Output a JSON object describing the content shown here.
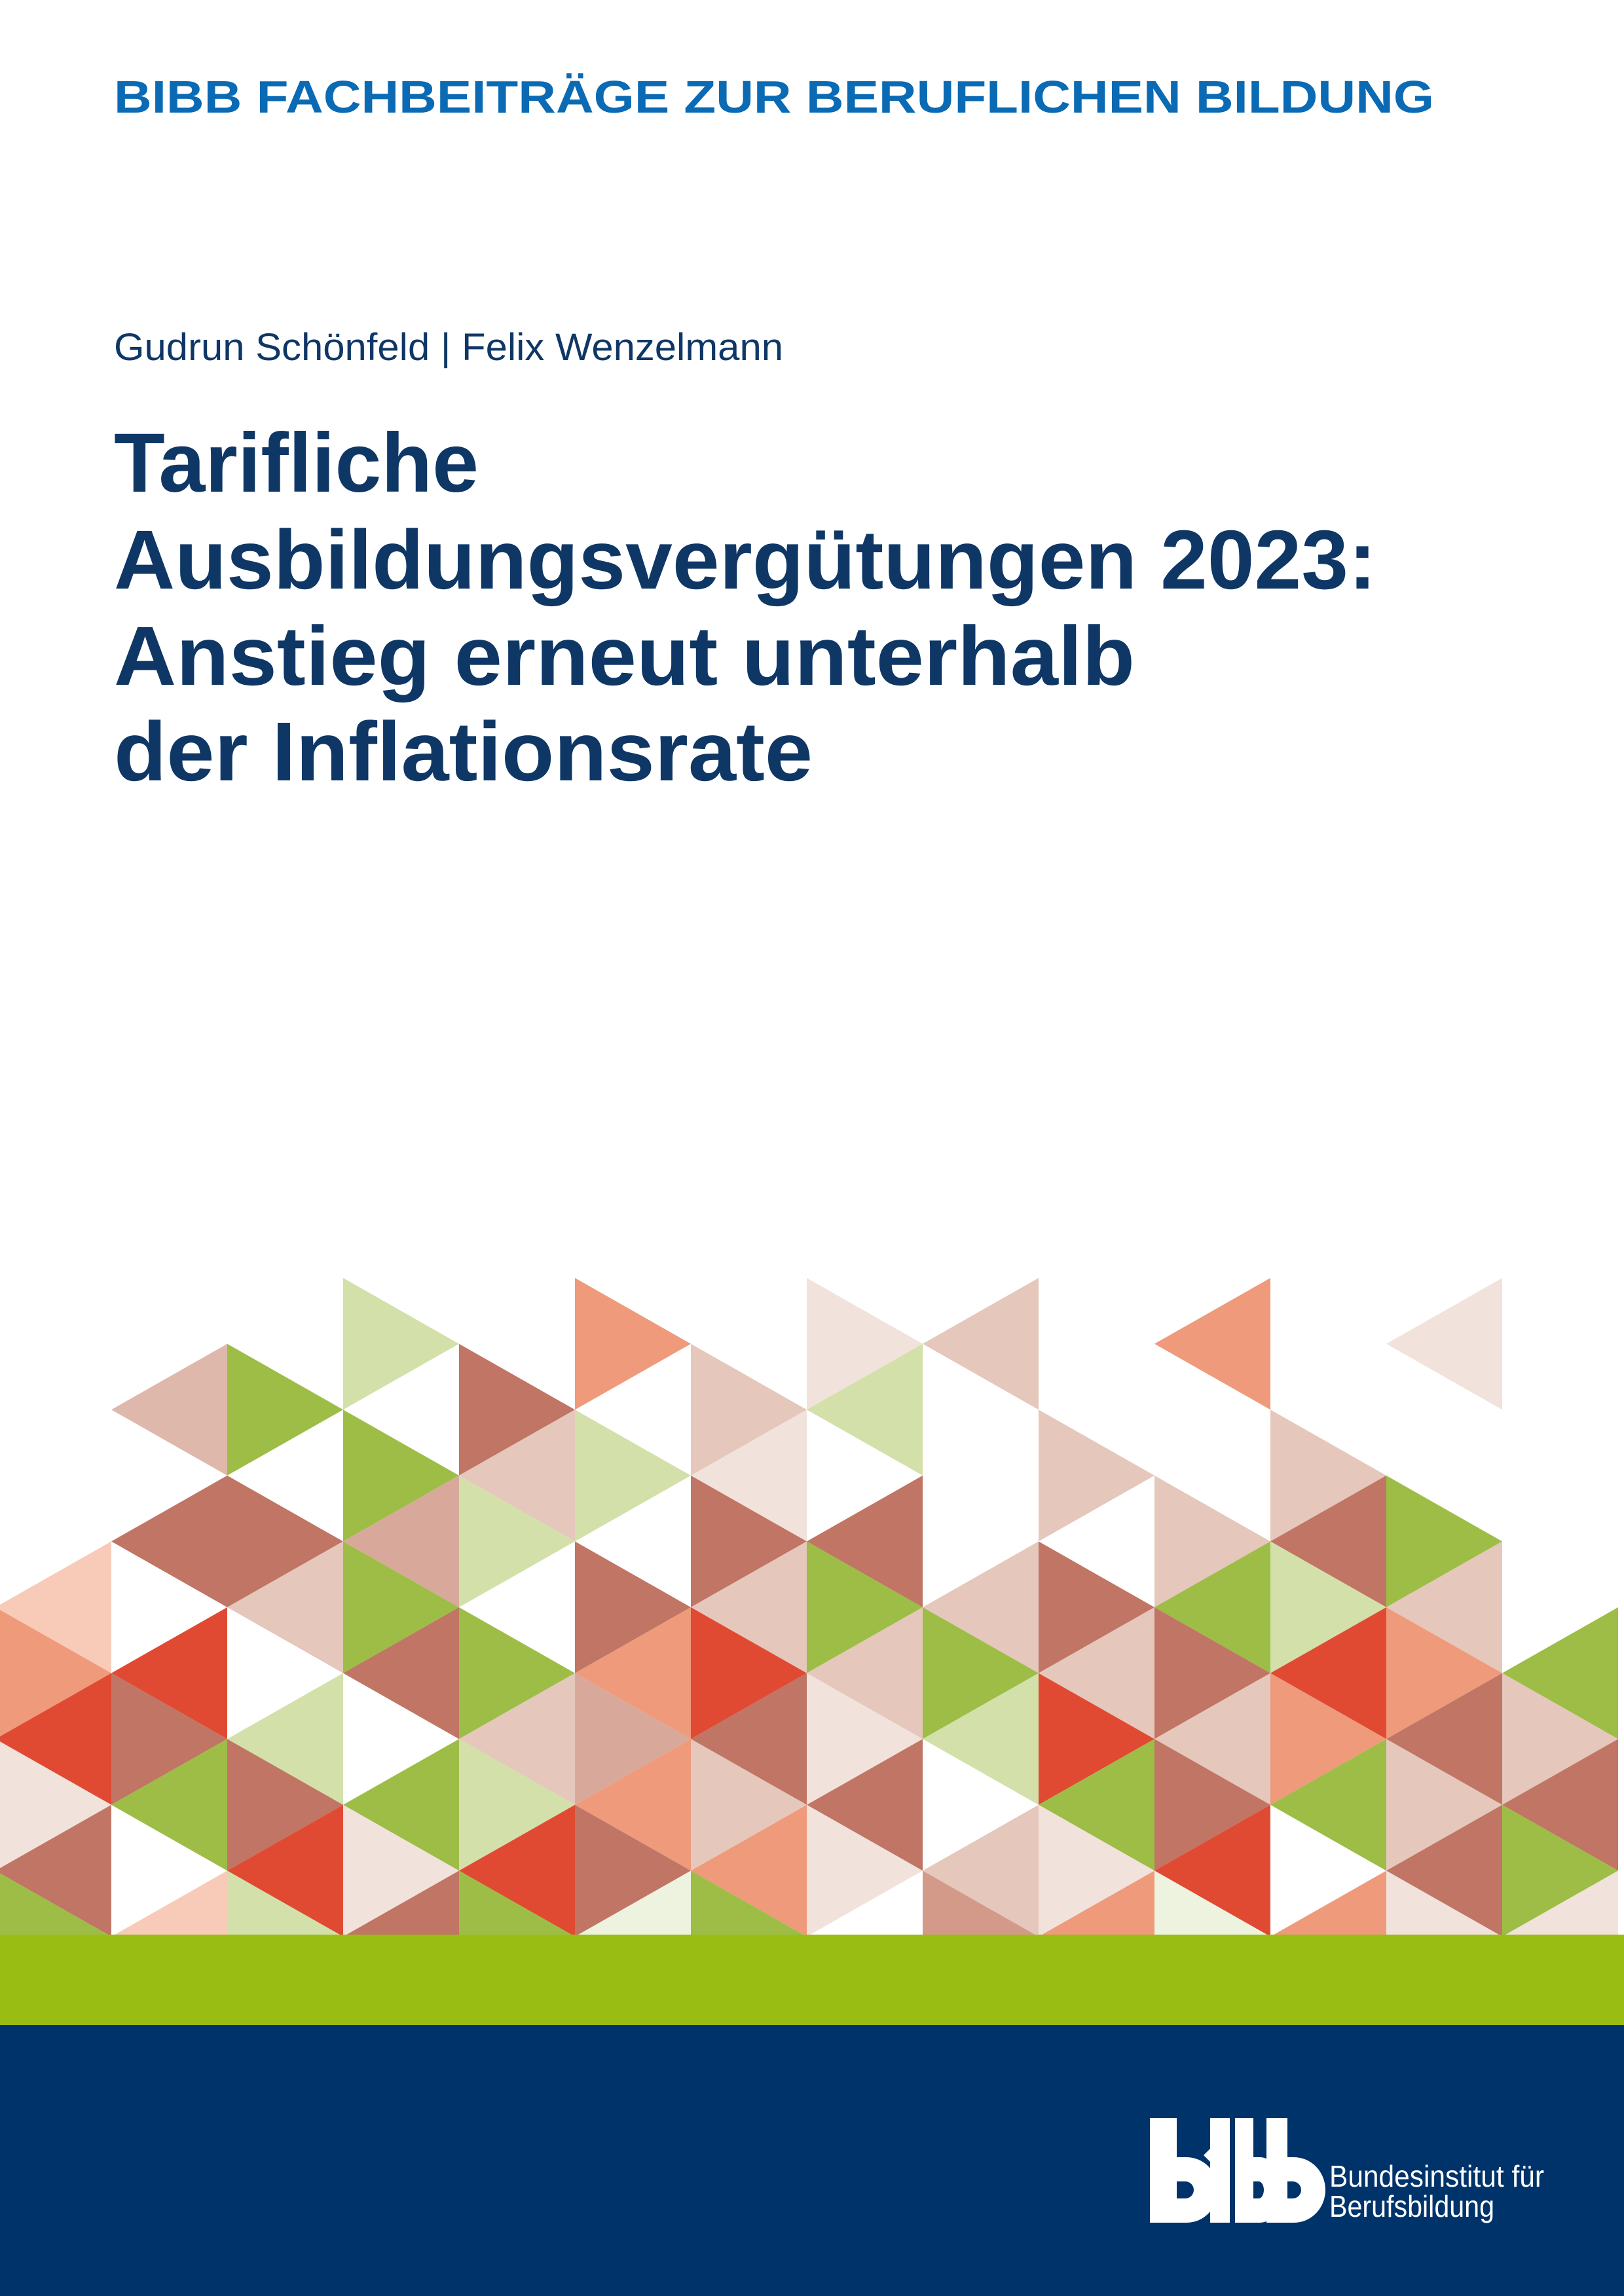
{
  "series_title": "BIBB FACHBEITRÄGE ZUR BERUFLICHEN BILDUNG",
  "authors": "Gudrun Schönfeld | Felix Wenzelmann",
  "title_lines": [
    "Tarifliche",
    "Ausbildungsvergütungen 2023:",
    "Anstieg erneut unterhalb",
    "der Inflationsrate"
  ],
  "publisher": {
    "logo_text": "bibb",
    "name_line1": "Bundesinstitut für",
    "name_line2": "Berufsbildung"
  },
  "colors": {
    "series_blue": "#0a6ab4",
    "navy_text": "#0f3766",
    "green_bar": "#99bd12",
    "navy_band": "#00336a"
  },
  "pattern": {
    "palette": {
      "W": "#ffffff",
      "G": "#9dbd46",
      "LG": "#d3e0aa",
      "VLG": "#eef3df",
      "DR": "#c07565",
      "R": "#e04a32",
      "S": "#ee9a7b",
      "P": "#e5c7bc",
      "LP": "#f2e2dc",
      "PP": "#f7cbb8",
      "DP": "#dfb8ac",
      "MP": "#d8a99b",
      "M2": "#d39a89"
    },
    "columns": [
      [
        "W",
        "W",
        "W",
        "W",
        "PP",
        "S",
        "R",
        "LP",
        "DR",
        "G"
      ],
      [
        "W",
        "DP",
        "W",
        "DR",
        "W",
        "R",
        "DR",
        "G",
        "W",
        "PP"
      ],
      [
        "W",
        "G",
        "W",
        "DR",
        "P",
        "W",
        "LG",
        "DR",
        "R",
        "LG"
      ],
      [
        "LG",
        "W",
        "G",
        "MP",
        "G",
        "DR",
        "W",
        "G",
        "LP",
        "DR"
      ],
      [
        "W",
        "DR",
        "P",
        "LG",
        "W",
        "G",
        "P",
        "LG",
        "R",
        "G"
      ],
      [
        "S",
        "W",
        "LG",
        "W",
        "DR",
        "S",
        "MP",
        "S",
        "DR",
        "VLG"
      ],
      [
        "W",
        "P",
        "LP",
        "DR",
        "P",
        "R",
        "DR",
        "P",
        "S",
        "G"
      ],
      [
        "LP",
        "LG",
        "W",
        "DR",
        "G",
        "P",
        "LP",
        "DR",
        "LP",
        "W"
      ],
      [
        "P",
        "W",
        "W",
        "W",
        "P",
        "G",
        "LG",
        "W",
        "P",
        "M2"
      ],
      [
        "W",
        "W",
        "P",
        "W",
        "DR",
        "P",
        "R",
        "G",
        "LP",
        "S"
      ],
      [
        "S",
        "W",
        "W",
        "P",
        "G",
        "DR",
        "P",
        "DR",
        "R",
        "VLG"
      ],
      [
        "W",
        "W",
        "P",
        "DR",
        "LG",
        "R",
        "S",
        "G",
        "W",
        "S"
      ],
      [
        "LP",
        "W",
        "W",
        "G",
        "P",
        "S",
        "DR",
        "P",
        "DR",
        "LP"
      ],
      [
        "W",
        "W",
        "W",
        "W",
        "W",
        "G",
        "P",
        "DR",
        "G",
        "LP"
      ]
    ]
  }
}
